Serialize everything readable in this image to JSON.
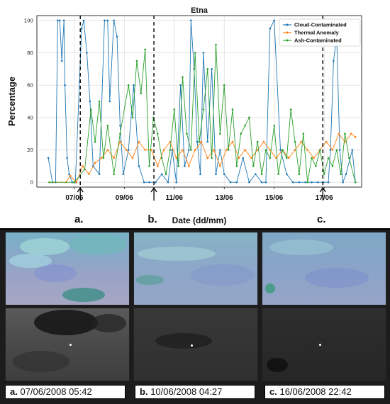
{
  "chart_data": {
    "type": "line",
    "title": "Etna",
    "xlabel": "Date (dd/mm)",
    "ylabel": "Percentage",
    "ylim": [
      -3,
      103
    ],
    "yticks": [
      0,
      20,
      40,
      60,
      80,
      100
    ],
    "xlim": [
      "2008-06-05T12:00",
      "2008-06-18T12:00"
    ],
    "xticks": [
      {
        "date": "2008-06-07",
        "label": "07/06"
      },
      {
        "date": "2008-06-09",
        "label": "09/06"
      },
      {
        "date": "2008-06-11",
        "label": "11/06"
      },
      {
        "date": "2008-06-13",
        "label": "13/06"
      },
      {
        "date": "2008-06-15",
        "label": "15/06"
      },
      {
        "date": "2008-06-17",
        "label": "17/06"
      }
    ],
    "grid": true,
    "legend_position": "top-right",
    "events": [
      {
        "label": "a.",
        "date": "2008-06-07T05:42"
      },
      {
        "label": "b.",
        "date": "2008-06-10T04:27"
      },
      {
        "label": "c.",
        "date": "2008-06-16T22:42"
      }
    ],
    "series": [
      {
        "name": "Cloud-Contaminated",
        "color": "#1f77b4",
        "x": [
          "2008-06-05T23:00",
          "2008-06-06T03:00",
          "2008-06-06T06:00",
          "2008-06-06T08:00",
          "2008-06-06T10:00",
          "2008-06-06T12:00",
          "2008-06-06T14:00",
          "2008-06-06T15:00",
          "2008-06-06T17:00",
          "2008-06-06T19:00",
          "2008-06-06T22:00",
          "2008-06-07T01:00",
          "2008-06-07T07:00",
          "2008-06-07T09:00",
          "2008-06-07T12:00",
          "2008-06-07T15:00",
          "2008-06-07T18:00",
          "2008-06-08T00:00",
          "2008-06-08T05:00",
          "2008-06-08T08:00",
          "2008-06-08T10:00",
          "2008-06-08T14:00",
          "2008-06-08T17:00",
          "2008-06-08T20:00",
          "2008-06-08T23:00",
          "2008-06-09T04:00",
          "2008-06-09T09:00",
          "2008-06-09T14:00",
          "2008-06-09T19:00",
          "2008-06-10T00:00",
          "2008-06-10T06:00",
          "2008-06-10T12:00",
          "2008-06-10T18:00",
          "2008-06-10T22:00",
          "2008-06-11T02:00",
          "2008-06-11T06:00",
          "2008-06-11T10:00",
          "2008-06-11T14:00",
          "2008-06-11T16:00",
          "2008-06-11T19:00",
          "2008-06-11T22:00",
          "2008-06-12T01:00",
          "2008-06-12T04:00",
          "2008-06-12T08:00",
          "2008-06-12T12:00",
          "2008-06-12T16:00",
          "2008-06-12T20:00",
          "2008-06-13T00:00",
          "2008-06-13T06:00",
          "2008-06-13T12:00",
          "2008-06-13T18:00",
          "2008-06-14T00:00",
          "2008-06-14T06:00",
          "2008-06-14T12:00",
          "2008-06-14T16:00",
          "2008-06-14T20:00",
          "2008-06-15T00:00",
          "2008-06-15T06:00",
          "2008-06-15T12:00",
          "2008-06-15T18:00",
          "2008-06-16T00:00",
          "2008-06-16T06:00",
          "2008-06-16T12:00",
          "2008-06-16T18:00",
          "2008-06-16T23:00",
          "2008-06-17T04:00",
          "2008-06-17T06:00",
          "2008-06-17T09:00",
          "2008-06-17T12:00",
          "2008-06-17T15:00",
          "2008-06-17T18:00",
          "2008-06-17T21:00",
          "2008-06-18T03:00",
          "2008-06-18T06:00"
        ],
        "values": [
          15,
          0,
          0,
          100,
          100,
          75,
          100,
          60,
          15,
          5,
          0,
          0,
          95,
          100,
          80,
          50,
          10,
          5,
          100,
          100,
          50,
          100,
          90,
          35,
          5,
          20,
          60,
          10,
          0,
          0,
          0,
          5,
          0,
          20,
          0,
          60,
          10,
          20,
          100,
          70,
          25,
          5,
          80,
          25,
          70,
          5,
          20,
          5,
          0,
          0,
          15,
          0,
          5,
          0,
          0,
          95,
          100,
          20,
          5,
          0,
          0,
          0,
          0,
          0,
          0,
          0,
          20,
          75,
          90,
          20,
          0,
          5,
          20,
          0
        ]
      },
      {
        "name": "Thermal Anomaly",
        "color": "#ff7f0e",
        "x": [
          "2008-06-06T00:00",
          "2008-06-06T16:00",
          "2008-06-06T20:00",
          "2008-06-07T02:00",
          "2008-06-07T08:00",
          "2008-06-07T14:00",
          "2008-06-07T20:00",
          "2008-06-08T02:00",
          "2008-06-08T08:00",
          "2008-06-08T14:00",
          "2008-06-08T20:00",
          "2008-06-09T02:00",
          "2008-06-09T08:00",
          "2008-06-09T14:00",
          "2008-06-09T20:00",
          "2008-06-10T02:00",
          "2008-06-10T08:00",
          "2008-06-10T14:00",
          "2008-06-10T20:00",
          "2008-06-11T02:00",
          "2008-06-11T08:00",
          "2008-06-11T14:00",
          "2008-06-11T20:00",
          "2008-06-12T02:00",
          "2008-06-12T08:00",
          "2008-06-12T14:00",
          "2008-06-12T20:00",
          "2008-06-13T02:00",
          "2008-06-13T08:00",
          "2008-06-13T14:00",
          "2008-06-13T20:00",
          "2008-06-14T02:00",
          "2008-06-14T08:00",
          "2008-06-14T14:00",
          "2008-06-14T20:00",
          "2008-06-15T02:00",
          "2008-06-15T08:00",
          "2008-06-15T14:00",
          "2008-06-15T20:00",
          "2008-06-16T02:00",
          "2008-06-16T08:00",
          "2008-06-16T14:00",
          "2008-06-16T20:00",
          "2008-06-17T02:00",
          "2008-06-17T08:00",
          "2008-06-17T14:00",
          "2008-06-17T20:00",
          "2008-06-18T02:00",
          "2008-06-18T06:00"
        ],
        "values": [
          0,
          0,
          4,
          0,
          10,
          5,
          12,
          15,
          20,
          15,
          25,
          20,
          15,
          25,
          20,
          20,
          10,
          20,
          25,
          15,
          20,
          10,
          20,
          25,
          15,
          20,
          10,
          20,
          25,
          15,
          20,
          15,
          20,
          25,
          20,
          15,
          20,
          15,
          20,
          25,
          20,
          15,
          20,
          25,
          20,
          30,
          25,
          30,
          28
        ]
      },
      {
        "name": "Ash-Contaminated",
        "color": "#2ca02c",
        "x": [
          "2008-06-06T00:00",
          "2008-06-07T00:00",
          "2008-06-07T10:00",
          "2008-06-07T16:00",
          "2008-06-07T20:00",
          "2008-06-08T00:00",
          "2008-06-08T04:00",
          "2008-06-08T08:00",
          "2008-06-08T14:00",
          "2008-06-08T20:00",
          "2008-06-09T04:00",
          "2008-06-09T08:00",
          "2008-06-09T12:00",
          "2008-06-09T16:00",
          "2008-06-09T20:00",
          "2008-06-10T00:00",
          "2008-06-10T04:00",
          "2008-06-10T08:00",
          "2008-06-10T12:00",
          "2008-06-10T16:00",
          "2008-06-10T20:00",
          "2008-06-11T00:00",
          "2008-06-11T04:00",
          "2008-06-11T08:00",
          "2008-06-11T12:00",
          "2008-06-11T16:00",
          "2008-06-11T20:00",
          "2008-06-12T00:00",
          "2008-06-12T04:00",
          "2008-06-12T08:00",
          "2008-06-12T12:00",
          "2008-06-12T16:00",
          "2008-06-12T20:00",
          "2008-06-13T00:00",
          "2008-06-13T04:00",
          "2008-06-13T08:00",
          "2008-06-13T12:00",
          "2008-06-13T16:00",
          "2008-06-13T20:00",
          "2008-06-14T00:00",
          "2008-06-14T04:00",
          "2008-06-14T08:00",
          "2008-06-14T12:00",
          "2008-06-14T16:00",
          "2008-06-14T20:00",
          "2008-06-15T00:00",
          "2008-06-15T04:00",
          "2008-06-15T08:00",
          "2008-06-15T12:00",
          "2008-06-15T16:00",
          "2008-06-15T20:00",
          "2008-06-16T00:00",
          "2008-06-16T04:00",
          "2008-06-16T08:00",
          "2008-06-16T12:00",
          "2008-06-16T16:00",
          "2008-06-16T20:00",
          "2008-06-17T00:00",
          "2008-06-17T04:00",
          "2008-06-17T08:00",
          "2008-06-17T12:00",
          "2008-06-17T16:00",
          "2008-06-17T20:00",
          "2008-06-18T00:00",
          "2008-06-18T06:00"
        ],
        "values": [
          0,
          0,
          8,
          45,
          25,
          50,
          15,
          35,
          5,
          30,
          60,
          40,
          75,
          55,
          82,
          10,
          40,
          30,
          15,
          5,
          20,
          45,
          10,
          65,
          30,
          20,
          80,
          25,
          45,
          70,
          15,
          85,
          30,
          60,
          20,
          45,
          10,
          30,
          35,
          40,
          10,
          25,
          5,
          20,
          15,
          35,
          5,
          20,
          15,
          45,
          25,
          5,
          30,
          0,
          15,
          10,
          20,
          5,
          15,
          10,
          20,
          5,
          30,
          15,
          0
        ]
      }
    ]
  },
  "panels": [
    {
      "label": "a.",
      "caption_label": "a.",
      "caption_text": "07/06/2008 05:42"
    },
    {
      "label": "b.",
      "caption_label": "b.",
      "caption_text": "10/06/2008 04:27"
    },
    {
      "label": "c.",
      "caption_label": "c.",
      "caption_text": "16/06/2008 22:42"
    }
  ]
}
